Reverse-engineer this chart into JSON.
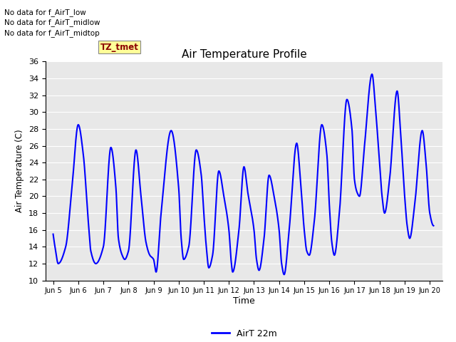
{
  "title": "Air Temperature Profile",
  "xlabel": "Time",
  "ylabel": "Air Temperature (C)",
  "ylim": [
    10,
    36
  ],
  "yticks": [
    10,
    12,
    14,
    16,
    18,
    20,
    22,
    24,
    26,
    28,
    30,
    32,
    34,
    36
  ],
  "line_color": "blue",
  "line_width": 1.5,
  "legend_label": "AirT 22m",
  "background_color": "#e8e8e8",
  "text_annotations": [
    "No data for f_AirT_low",
    "No data for f_AirT_midlow",
    "No data for f_AirT_midtop"
  ],
  "tz_label": "TZ_tmet",
  "x_tick_labels": [
    "Jun 5",
    "Jun 6",
    "Jun 7",
    "Jun 8",
    "Jun 9",
    "Jun 10",
    "Jun 11",
    "Jun 12",
    "Jun 13",
    "Jun 14",
    "Jun 15",
    "Jun 16",
    "Jun 17",
    "Jun 18",
    "Jun 19",
    "Jun 20"
  ],
  "figsize": [
    6.4,
    4.8
  ],
  "dpi": 100
}
